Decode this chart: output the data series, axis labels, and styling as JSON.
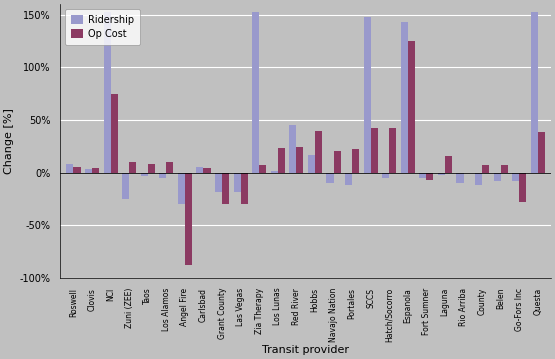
{
  "categories": [
    "Roswell",
    "Clovis",
    "NCI",
    "Zuni (ZEE)",
    "Taos",
    "Los Alamos",
    "Angel Fire",
    "Carlsbad",
    "Grant County",
    "Las Vegas",
    "Zia Therapy",
    "Los Lunas",
    "Red River",
    "Hobbs",
    "Navajo Nation",
    "Portales",
    "SCCS",
    "Hatch/Socorro",
    "Espanola",
    "Fort Sumner",
    "Laguna",
    "Rio Arriba",
    "County",
    "Belen",
    "Go-Fors Inc",
    "Questa"
  ],
  "ridership": [
    8,
    3,
    153,
    -25,
    -3,
    -5,
    -30,
    5,
    -18,
    -18,
    153,
    2,
    45,
    17,
    -10,
    -12,
    148,
    -5,
    143,
    -5,
    -2,
    -10,
    -12,
    -8,
    -8,
    153
  ],
  "op_cost": [
    5,
    4,
    75,
    10,
    8,
    10,
    -88,
    4,
    -30,
    -30,
    7,
    23,
    24,
    40,
    21,
    22,
    42,
    42,
    125,
    -7,
    16,
    0,
    7,
    7,
    -28,
    39
  ],
  "ridership_color": "#9999cc",
  "op_cost_color": "#8B3A62",
  "background_color": "#c0c0c0",
  "plot_bg_color": "#c0c0c0",
  "ylabel": "Change [%]",
  "xlabel": "Transit provider",
  "ylim": [
    -100,
    160
  ],
  "yticks": [
    -100,
    -50,
    0,
    50,
    100,
    150
  ],
  "ytick_labels": [
    "-100%",
    "-50%",
    "0%",
    "50%",
    "100%",
    "150%"
  ],
  "legend_labels": [
    "Ridership",
    "Op Cost"
  ],
  "grid_color": "#ffffff"
}
